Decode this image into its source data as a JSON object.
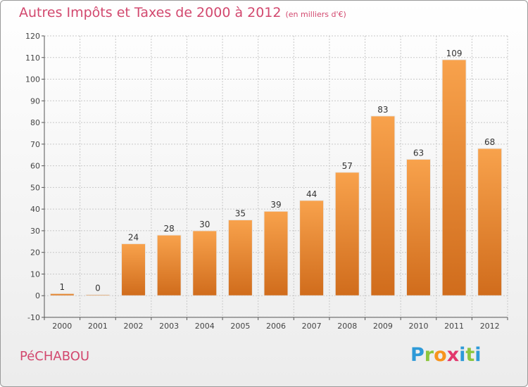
{
  "header": {
    "title": "Autres Impôts et Taxes de 2000 à 2012",
    "unit": "(en milliers d'€)"
  },
  "footer": {
    "town": "PéCHABOU",
    "logo_letters": [
      "P",
      "r",
      "o",
      "x",
      "i",
      "t",
      "i"
    ],
    "logo_colors": [
      "#2e9ad8",
      "#8cc63f",
      "#f7941d",
      "#e2376d",
      "#2e9ad8",
      "#8cc63f",
      "#2e9ad8"
    ]
  },
  "colors": {
    "bar_light": "#f8a24c",
    "bar_dark": "#d06c1c",
    "title": "#d2486e",
    "grid": "#c8c8c8"
  },
  "chart_data": {
    "type": "bar",
    "title": "Autres Impôts et Taxes de 2000 à 2012",
    "subtitle": "(en milliers d'€)",
    "xlabel": "",
    "ylabel": "",
    "ylim": [
      -10,
      120
    ],
    "yticks": [
      -10,
      0,
      10,
      20,
      30,
      40,
      50,
      60,
      70,
      80,
      90,
      100,
      110,
      120
    ],
    "grid": true,
    "categories": [
      "2000",
      "2001",
      "2002",
      "2003",
      "2004",
      "2005",
      "2006",
      "2007",
      "2008",
      "2009",
      "2010",
      "2011",
      "2012"
    ],
    "values": [
      1,
      0,
      24,
      28,
      30,
      35,
      39,
      44,
      57,
      83,
      63,
      109,
      68
    ],
    "labels": [
      "1",
      "0",
      "24",
      "28",
      "30",
      "35",
      "39",
      "44",
      "57",
      "83",
      "63",
      "109",
      "68"
    ]
  }
}
